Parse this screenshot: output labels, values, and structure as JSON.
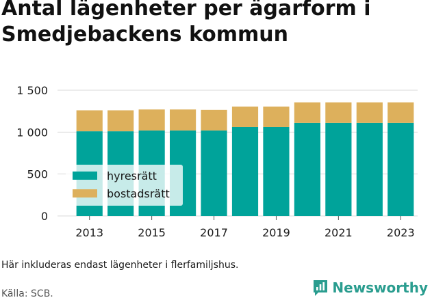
{
  "title": "Antal lägenheter per ägarform i Smedjebackens kommun",
  "note": "Här inkluderas endast lägenheter i flerfamiljshus.",
  "source": "Källa: SCB.",
  "brand": "Newsworthy",
  "colors": {
    "hyresratt": "#00a39a",
    "bostadsratt": "#ddb05c",
    "grid": "#d9d9d9",
    "brand": "#2a9d8f"
  },
  "chart_data": {
    "type": "bar",
    "stacked": true,
    "categories": [
      "2013",
      "2014",
      "2015",
      "2016",
      "2017",
      "2018",
      "2019",
      "2020",
      "2021",
      "2022",
      "2023"
    ],
    "x_tick_labels": [
      "2013",
      "2015",
      "2017",
      "2019",
      "2021",
      "2023"
    ],
    "y_ticks": [
      0,
      500,
      1000,
      1500
    ],
    "y_tick_labels": [
      "0",
      "500",
      "1 000",
      "1 500"
    ],
    "ylim": [
      0,
      1500
    ],
    "grid": true,
    "legend_position": "bottom-left",
    "series": [
      {
        "name": "hyresrätt",
        "values": [
          1010,
          1010,
          1020,
          1020,
          1020,
          1060,
          1060,
          1110,
          1110,
          1110,
          1110
        ]
      },
      {
        "name": "bostadsrätt",
        "values": [
          250,
          250,
          250,
          250,
          245,
          245,
          245,
          245,
          245,
          245,
          245
        ]
      }
    ]
  }
}
